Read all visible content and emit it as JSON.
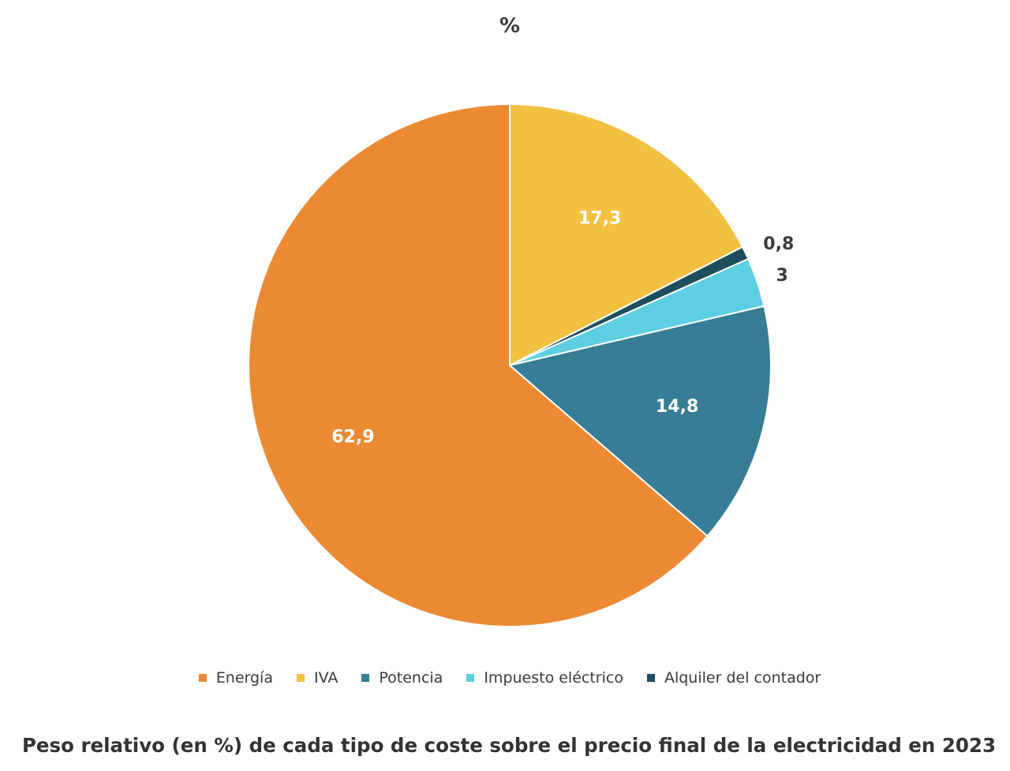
{
  "chart_data": {
    "type": "pie",
    "title": "%",
    "subtitle": "Peso relativo (en %) de cada tipo de coste sobre el precio final de la electricidad en 2023",
    "legend_position": "bottom",
    "slices": [
      {
        "key": "iva",
        "name": "IVA",
        "value": 17.3,
        "label": "17,3",
        "color": "#F2C141",
        "label_color": "#ffffff",
        "label_outside": false
      },
      {
        "key": "alquiler",
        "name": "Alquiler del contador",
        "value": 0.8,
        "label": "0,8",
        "color": "#1E4E5E",
        "label_color": "#3a3a3a",
        "label_outside": true
      },
      {
        "key": "impuesto",
        "name": "Impuesto eléctrico",
        "value": 3,
        "label": "3",
        "color": "#5ECFE3",
        "label_color": "#3a3a3a",
        "label_outside": true
      },
      {
        "key": "potencia",
        "name": "Potencia",
        "value": 14.8,
        "label": "14,8",
        "color": "#367D95",
        "label_color": "#ffffff",
        "label_outside": false
      },
      {
        "key": "energia",
        "name": "Energía",
        "value": 62.9,
        "label": "62,9",
        "color": "#EC8A33",
        "label_color": "#ffffff",
        "label_outside": false
      }
    ],
    "legend_order": [
      "energia",
      "iva",
      "potencia",
      "impuesto",
      "alquiler"
    ]
  }
}
